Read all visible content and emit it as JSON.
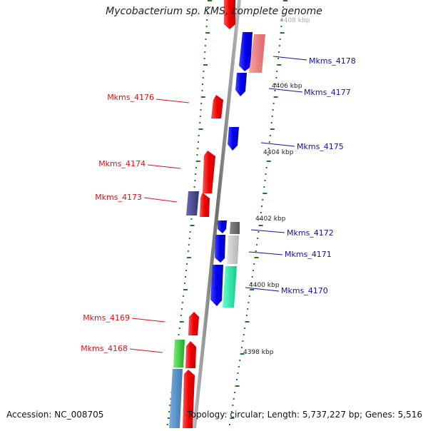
{
  "title": "Mycobacterium sp. KMS, complete genome",
  "footer": {
    "accession": "Accession: NC_008705",
    "topology": "Topology: circular; Length: 5,737,227 bp; Genes: 5,516"
  },
  "colors": {
    "forward_strand": "#ee1111",
    "reverse_strand": "#1111ee",
    "left_label": "#dd1111",
    "right_label": "#1111aa",
    "ruler_dots": "#1a7a1a",
    "backbone": "#888888"
  },
  "kbp_labels": [
    "4408 kbp",
    "4406 kbp",
    "4404 kbp",
    "4402 kbp",
    "4400 kbp",
    "4398 kbp"
  ],
  "left_genes": [
    {
      "name": "Mkms_4176"
    },
    {
      "name": "Mkms_4174"
    },
    {
      "name": "Mkms_4173"
    },
    {
      "name": "Mkms_4169"
    },
    {
      "name": "Mkms_4168"
    }
  ],
  "right_genes": [
    {
      "name": "Mkms_4178"
    },
    {
      "name": "Mkms_4177"
    },
    {
      "name": "Mkms_4175"
    },
    {
      "name": "Mkms_4172"
    },
    {
      "name": "Mkms_4171"
    },
    {
      "name": "Mkms_4170"
    }
  ]
}
